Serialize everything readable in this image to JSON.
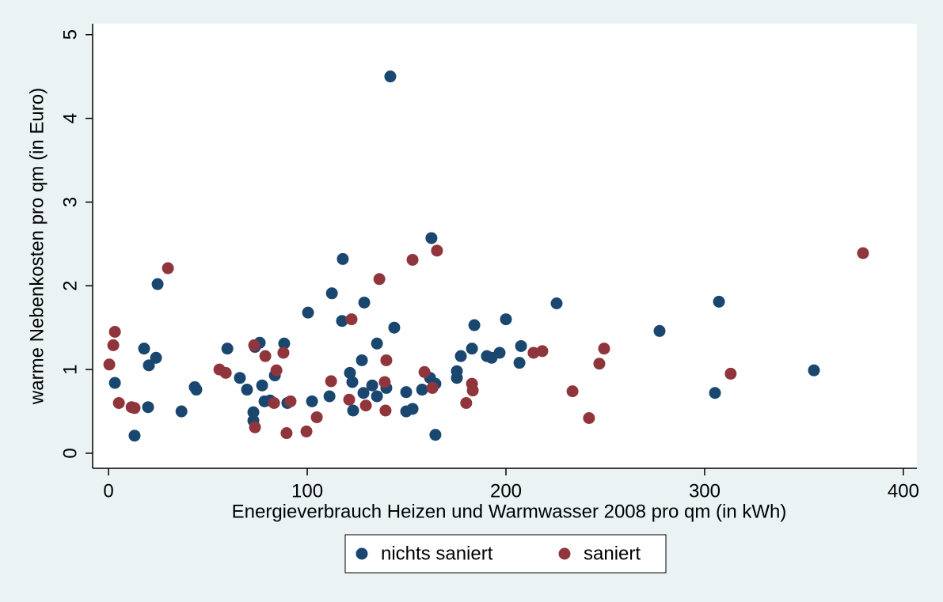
{
  "chart_data": {
    "type": "scatter",
    "x_label": "Energieverbrauch Heizen und Warmwasser 2008 pro qm (in kWh)",
    "y_label": "warme Nebenkosten pro qm (in Euro)",
    "xlim": [
      -8,
      406.8
    ],
    "ylim": [
      -0.18,
      5.13
    ],
    "xticks": [
      0,
      100,
      200,
      300,
      400
    ],
    "yticks": [
      0,
      1,
      2,
      3,
      4,
      5
    ],
    "grid": false,
    "legend": "bottom",
    "series": [
      {
        "name": "nichts saniert",
        "color": "#1a476f",
        "x": [
          3.2,
          13.1,
          17.9,
          20.3,
          19.9,
          23.9,
          24.7,
          36.7,
          43.4,
          44.2,
          59.8,
          66.1,
          69.7,
          72.9,
          72.9,
          73.7,
          76.1,
          77.3,
          78.5,
          81.3,
          83.7,
          88.4,
          90.0,
          100.4,
          102.4,
          111.2,
          112.4,
          117.5,
          117.9,
          121.5,
          122.7,
          123.1,
          127.5,
          128.7,
          128.3,
          132.7,
          135.1,
          135.1,
          139.8,
          141.8,
          143.8,
          149.8,
          149.8,
          153.0,
          157.8,
          162.5,
          161.8,
          164.5,
          164.5,
          175.3,
          175.3,
          177.3,
          182.9,
          184.1,
          190.4,
          192.8,
          196.8,
          200.0,
          206.8,
          207.6,
          225.5,
          277.3,
          305.2,
          307.2,
          355.0
        ],
        "values": [
          0.84,
          0.21,
          1.25,
          1.05,
          0.55,
          1.14,
          2.02,
          0.5,
          0.79,
          0.76,
          1.25,
          0.9,
          0.76,
          0.49,
          0.39,
          1.27,
          1.32,
          0.81,
          0.62,
          0.63,
          0.93,
          1.31,
          0.6,
          1.68,
          0.62,
          0.68,
          1.91,
          1.58,
          2.32,
          0.96,
          0.85,
          0.51,
          1.11,
          1.8,
          0.72,
          0.81,
          1.31,
          0.68,
          0.78,
          4.5,
          1.5,
          0.73,
          0.5,
          0.53,
          0.76,
          2.57,
          0.9,
          0.83,
          0.22,
          0.98,
          0.9,
          1.16,
          1.25,
          1.53,
          1.16,
          1.14,
          1.2,
          1.6,
          1.08,
          1.28,
          1.79,
          1.46,
          0.72,
          1.81,
          0.99
        ]
      },
      {
        "name": "saniert",
        "color": "#90353b",
        "x": [
          0.4,
          2.4,
          3.2,
          5.2,
          11.6,
          13.1,
          29.9,
          55.8,
          59.0,
          73.3,
          73.7,
          78.9,
          83.3,
          84.5,
          88.0,
          89.6,
          91.6,
          99.6,
          104.8,
          112.0,
          121.1,
          122.3,
          129.5,
          136.3,
          139.0,
          139.4,
          139.8,
          153.0,
          159.0,
          163.0,
          165.3,
          180.0,
          182.9,
          183.3,
          213.9,
          218.3,
          233.5,
          241.8,
          247.0,
          249.4,
          313.1,
          379.7
        ],
        "values": [
          1.06,
          1.29,
          1.45,
          0.6,
          0.55,
          0.54,
          2.21,
          1.0,
          0.96,
          1.29,
          0.31,
          1.16,
          0.6,
          0.99,
          1.2,
          0.24,
          0.62,
          0.26,
          0.43,
          0.86,
          0.64,
          1.6,
          0.57,
          2.08,
          0.85,
          0.51,
          1.11,
          2.31,
          0.97,
          0.78,
          2.42,
          0.6,
          0.83,
          0.75,
          1.2,
          1.22,
          0.74,
          0.42,
          1.07,
          1.25,
          0.95,
          2.39
        ]
      }
    ]
  }
}
